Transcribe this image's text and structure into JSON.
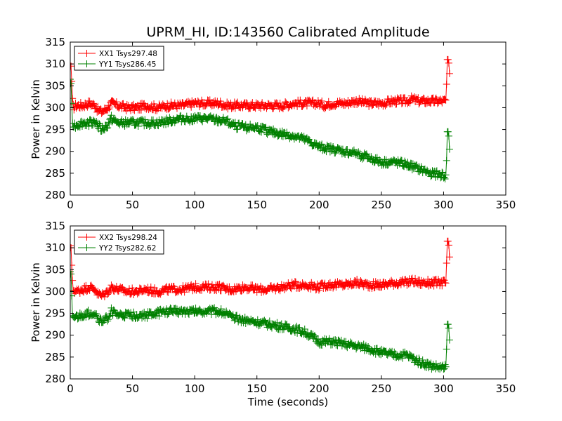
{
  "chart_data": [
    {
      "type": "line",
      "title": "UPRM_HI, ID:143560 Calibrated Amplitude",
      "xlabel": "",
      "ylabel": "Power in Kelvin",
      "xlim": [
        0,
        350
      ],
      "ylim": [
        280,
        315
      ],
      "xticks": [
        0,
        50,
        100,
        150,
        200,
        250,
        300,
        350
      ],
      "yticks": [
        280,
        285,
        290,
        295,
        300,
        305,
        310,
        315
      ],
      "legend_position": "top-left",
      "series": [
        {
          "name": "XX1 Tsys297.48",
          "color": "#ff0000",
          "marker": "plus",
          "keypoints": [
            [
              0,
              310
            ],
            [
              0.6,
              309.5
            ],
            [
              1.2,
              306
            ],
            [
              2,
              300
            ],
            [
              5,
              300.5
            ],
            [
              10,
              300.5
            ],
            [
              15,
              301
            ],
            [
              20,
              300.5
            ],
            [
              22,
              299.5
            ],
            [
              25,
              299
            ],
            [
              28,
              299.5
            ],
            [
              30,
              300
            ],
            [
              33,
              301
            ],
            [
              38,
              300.5
            ],
            [
              45,
              300
            ],
            [
              55,
              300
            ],
            [
              60,
              300.5
            ],
            [
              70,
              300
            ],
            [
              80,
              300.5
            ],
            [
              90,
              300.5
            ],
            [
              100,
              301
            ],
            [
              110,
              301
            ],
            [
              120,
              301
            ],
            [
              125,
              300.5
            ],
            [
              130,
              300.5
            ],
            [
              140,
              300.5
            ],
            [
              150,
              300.5
            ],
            [
              160,
              300.5
            ],
            [
              170,
              300.5
            ],
            [
              180,
              301
            ],
            [
              190,
              301
            ],
            [
              200,
              301
            ],
            [
              205,
              300.5
            ],
            [
              210,
              301
            ],
            [
              220,
              301
            ],
            [
              230,
              301.5
            ],
            [
              240,
              301
            ],
            [
              250,
              301
            ],
            [
              260,
              301.5
            ],
            [
              270,
              301.5
            ],
            [
              275,
              302
            ],
            [
              280,
              301.5
            ],
            [
              290,
              301.5
            ],
            [
              300,
              301.5
            ],
            [
              302,
              301.5
            ],
            [
              303,
              311
            ],
            [
              304,
              311
            ],
            [
              305,
              307
            ]
          ],
          "noise": 0.8
        },
        {
          "name": "YY1 Tsys286.45",
          "color": "#008000",
          "marker": "plus",
          "keypoints": [
            [
              0,
              306.5
            ],
            [
              0.6,
              305.5
            ],
            [
              1.2,
              301
            ],
            [
              2,
              296
            ],
            [
              5,
              296
            ],
            [
              10,
              296.5
            ],
            [
              15,
              296.5
            ],
            [
              20,
              297
            ],
            [
              22,
              296
            ],
            [
              25,
              295
            ],
            [
              28,
              295.5
            ],
            [
              30,
              296
            ],
            [
              33,
              297.5
            ],
            [
              38,
              296.5
            ],
            [
              45,
              296.5
            ],
            [
              55,
              296.5
            ],
            [
              60,
              296.5
            ],
            [
              70,
              296.5
            ],
            [
              80,
              297
            ],
            [
              90,
              297.5
            ],
            [
              100,
              297.5
            ],
            [
              110,
              297.5
            ],
            [
              120,
              297
            ],
            [
              125,
              297
            ],
            [
              130,
              296
            ],
            [
              140,
              295.5
            ],
            [
              150,
              295.5
            ],
            [
              160,
              294.5
            ],
            [
              170,
              294
            ],
            [
              180,
              293.5
            ],
            [
              190,
              292.5
            ],
            [
              200,
              291
            ],
            [
              210,
              290.5
            ],
            [
              220,
              290
            ],
            [
              230,
              289.5
            ],
            [
              240,
              288.5
            ],
            [
              250,
              287.5
            ],
            [
              260,
              287.5
            ],
            [
              270,
              287
            ],
            [
              280,
              286
            ],
            [
              290,
              285
            ],
            [
              300,
              284.5
            ],
            [
              302,
              284
            ],
            [
              303,
              294.5
            ],
            [
              304,
              294.5
            ],
            [
              305,
              289.5
            ]
          ],
          "noise": 0.8
        }
      ]
    },
    {
      "type": "line",
      "title": "",
      "xlabel": "Time (seconds)",
      "ylabel": "Power in Kelvin",
      "xlim": [
        0,
        350
      ],
      "ylim": [
        280,
        315
      ],
      "xticks": [
        0,
        50,
        100,
        150,
        200,
        250,
        300,
        350
      ],
      "yticks": [
        280,
        285,
        290,
        295,
        300,
        305,
        310,
        315
      ],
      "legend_position": "top-left",
      "series": [
        {
          "name": "XX2 Tsys298.24",
          "color": "#ff0000",
          "marker": "plus",
          "keypoints": [
            [
              0,
              310.5
            ],
            [
              0.6,
              310
            ],
            [
              1.2,
              306
            ],
            [
              2,
              300.5
            ],
            [
              5,
              300
            ],
            [
              10,
              300.5
            ],
            [
              15,
              301
            ],
            [
              20,
              300.5
            ],
            [
              22,
              299.5
            ],
            [
              25,
              299
            ],
            [
              28,
              299.5
            ],
            [
              30,
              300
            ],
            [
              33,
              301
            ],
            [
              38,
              300.5
            ],
            [
              45,
              300
            ],
            [
              55,
              300
            ],
            [
              60,
              300.5
            ],
            [
              70,
              300
            ],
            [
              80,
              300.5
            ],
            [
              90,
              300.5
            ],
            [
              100,
              301
            ],
            [
              110,
              301
            ],
            [
              120,
              301
            ],
            [
              125,
              300.5
            ],
            [
              130,
              300.5
            ],
            [
              140,
              301
            ],
            [
              150,
              300.5
            ],
            [
              160,
              300.5
            ],
            [
              170,
              301
            ],
            [
              180,
              301.5
            ],
            [
              190,
              301.5
            ],
            [
              200,
              301
            ],
            [
              205,
              301.5
            ],
            [
              210,
              301.5
            ],
            [
              220,
              301.5
            ],
            [
              230,
              302
            ],
            [
              240,
              301.5
            ],
            [
              250,
              301.5
            ],
            [
              260,
              302
            ],
            [
              270,
              302
            ],
            [
              275,
              302.5
            ],
            [
              280,
              302
            ],
            [
              290,
              302
            ],
            [
              300,
              302
            ],
            [
              302,
              302
            ],
            [
              303,
              311.5
            ],
            [
              304,
              311.5
            ],
            [
              305,
              307
            ]
          ],
          "noise": 0.8
        },
        {
          "name": "YY2 Tsys282.62",
          "color": "#008000",
          "marker": "plus",
          "keypoints": [
            [
              0,
              304.5
            ],
            [
              0.6,
              304
            ],
            [
              1.2,
              299
            ],
            [
              2,
              294
            ],
            [
              5,
              294
            ],
            [
              10,
              294.5
            ],
            [
              15,
              295
            ],
            [
              20,
              295
            ],
            [
              22,
              294
            ],
            [
              25,
              293
            ],
            [
              28,
              293.5
            ],
            [
              30,
              294
            ],
            [
              33,
              295.5
            ],
            [
              38,
              294.5
            ],
            [
              45,
              294.5
            ],
            [
              55,
              294.5
            ],
            [
              60,
              294.5
            ],
            [
              70,
              295
            ],
            [
              80,
              295.5
            ],
            [
              90,
              295.5
            ],
            [
              100,
              295.5
            ],
            [
              110,
              295.5
            ],
            [
              120,
              295.5
            ],
            [
              125,
              295
            ],
            [
              130,
              294
            ],
            [
              140,
              293.5
            ],
            [
              150,
              293
            ],
            [
              160,
              292.5
            ],
            [
              170,
              292
            ],
            [
              180,
              291.5
            ],
            [
              190,
              290.5
            ],
            [
              200,
              288.5
            ],
            [
              210,
              288.5
            ],
            [
              220,
              288
            ],
            [
              230,
              287.5
            ],
            [
              240,
              287
            ],
            [
              250,
              286
            ],
            [
              260,
              285.5
            ],
            [
              270,
              285.5
            ],
            [
              280,
              284
            ],
            [
              290,
              283
            ],
            [
              300,
              282.5
            ],
            [
              302,
              282.5
            ],
            [
              303,
              292.5
            ],
            [
              304,
              292.5
            ],
            [
              305,
              288
            ]
          ],
          "noise": 0.8
        }
      ]
    }
  ]
}
